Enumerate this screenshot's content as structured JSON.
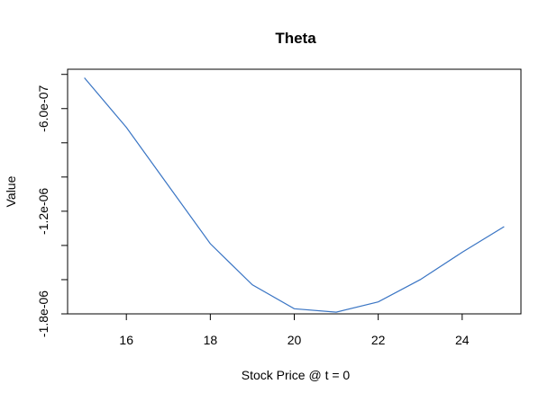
{
  "chart_data": {
    "type": "line",
    "title": "Theta",
    "xlabel": "Stock Price @ t = 0",
    "ylabel": "Value",
    "xlim": [
      14.6,
      25.4
    ],
    "ylim": [
      -1.8e-06,
      -3.7e-07
    ],
    "x_ticks": [
      16,
      18,
      20,
      22,
      24
    ],
    "x_tick_labels": [
      "16",
      "18",
      "20",
      "22",
      "24"
    ],
    "y_ticks": [
      -6e-07,
      -1.2e-06,
      -1.8e-06
    ],
    "y_tick_labels": [
      "-6.0e-07",
      "-1.2e-06",
      "-1.8e-06"
    ],
    "y_minor_ticks": [
      -4e-07,
      -6e-07,
      -8e-07,
      -1e-06,
      -1.2e-06,
      -1.4e-06,
      -1.6e-06,
      -1.8e-06
    ],
    "grid": false,
    "series": [
      {
        "color": "#3a75c4",
        "x": [
          15,
          16,
          17,
          18,
          19,
          20,
          21,
          22,
          23,
          24,
          25
        ],
        "y": [
          -4.2e-07,
          -7.1e-07,
          -1.05e-06,
          -1.39e-06,
          -1.63e-06,
          -1.77e-06,
          -1.79e-06,
          -1.73e-06,
          -1.6e-06,
          -1.44e-06,
          -1.29e-06
        ]
      }
    ]
  }
}
